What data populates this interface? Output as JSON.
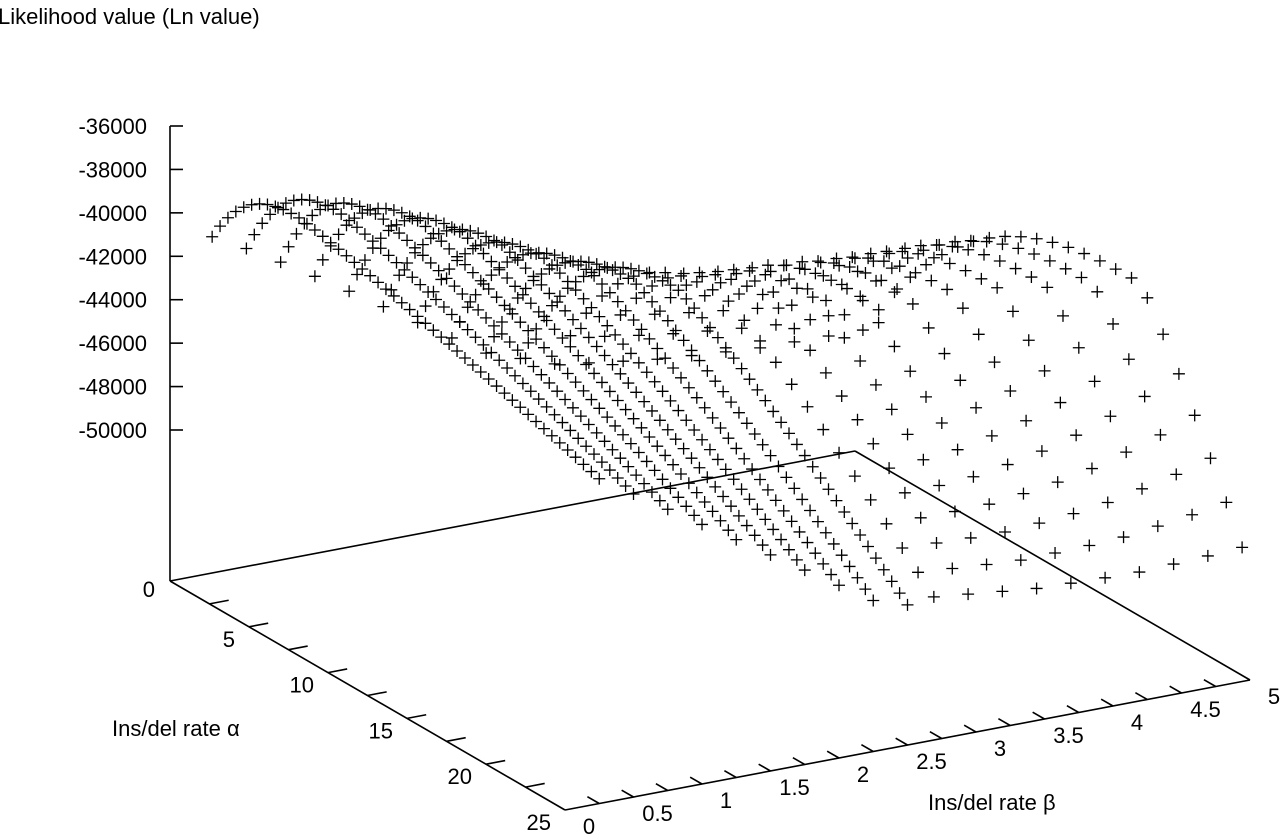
{
  "chart_data": {
    "type": "scatter",
    "plot_style": "3d-surface-points",
    "marker": "+",
    "marker_color": "#000000",
    "zlabel": "Likelihood value (Ln value)",
    "xlabel": "Ins/del rate β",
    "ylabel": "Ins/del rate α",
    "zticks": [
      "-36000",
      "-38000",
      "-40000",
      "-42000",
      "-44000",
      "-46000",
      "-48000",
      "-50000"
    ],
    "zticks_values": [
      -36000,
      -38000,
      -40000,
      -42000,
      -44000,
      -46000,
      -48000,
      -50000
    ],
    "zbase_label": "0",
    "xticks": [
      "0",
      "0.5",
      "1",
      "1.5",
      "2",
      "2.5",
      "3",
      "3.5",
      "4",
      "4.5",
      "5"
    ],
    "xticks_values": [
      0,
      0.5,
      1,
      1.5,
      2,
      2.5,
      3,
      3.5,
      4,
      4.5,
      5
    ],
    "yticks": [
      "5",
      "10",
      "15",
      "20",
      "25"
    ],
    "yticks_values": [
      5,
      10,
      15,
      20,
      25
    ],
    "xlim": [
      0,
      5
    ],
    "ylim": [
      0,
      25
    ],
    "zlim": [
      -52000,
      -36000
    ],
    "grid": false,
    "legend": "none",
    "surface": {
      "beta_rows": [
        0.25,
        0.5,
        0.75,
        1,
        1.25,
        1.5,
        1.75,
        2,
        2.25,
        2.5,
        2.75,
        3,
        3.25,
        3.5,
        3.75,
        4,
        4.25,
        4.5,
        4.75,
        5
      ],
      "alpha_range": [
        0,
        25
      ],
      "peak_likelihood": [
        -38000,
        -37900,
        -38200,
        -38600,
        -39200,
        -39900,
        -40600,
        -41200,
        -41700,
        -42100,
        -42400,
        -42500,
        -42500,
        -42400,
        -42300,
        -42200,
        -42000,
        -41800,
        -41700,
        -41600
      ],
      "peak_alpha": [
        6,
        6.4,
        6.8,
        7.2,
        7.6,
        8,
        8.6,
        9.2,
        9.8,
        10.4,
        11.2,
        12,
        12.6,
        13.2,
        14,
        14.8,
        15.6,
        16.4,
        17.2,
        18
      ],
      "edge_likelihood": [
        -42000,
        -43000,
        -44000,
        -45000,
        -46000,
        -47000,
        -48000,
        -49000,
        -50000,
        -50500,
        -51000,
        -51200,
        -51400,
        -51600,
        -51700,
        -51800,
        -51900,
        -51900,
        -51900,
        -51900
      ]
    }
  }
}
